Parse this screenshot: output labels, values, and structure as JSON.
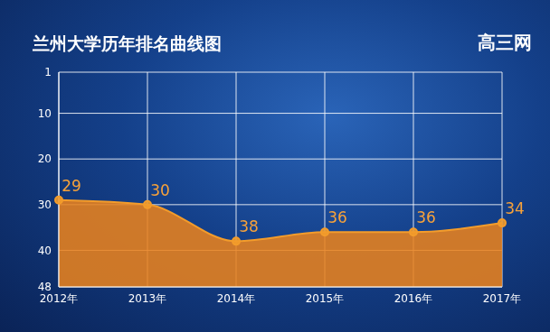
{
  "chart_data": {
    "type": "area",
    "title": "兰州大学历年排名曲线图",
    "annotations": [
      "高三网"
    ],
    "categories": [
      "2012年",
      "2013年",
      "2014年",
      "2015年",
      "2016年",
      "2017年"
    ],
    "values": [
      29,
      30,
      38,
      36,
      36,
      34
    ],
    "color": "#e8821e",
    "ylim": [
      1,
      48
    ],
    "yticks": [
      1,
      10,
      20,
      30,
      40,
      48
    ],
    "reversed_y": true,
    "grid": true,
    "data_labels": true,
    "marker": "circle"
  }
}
